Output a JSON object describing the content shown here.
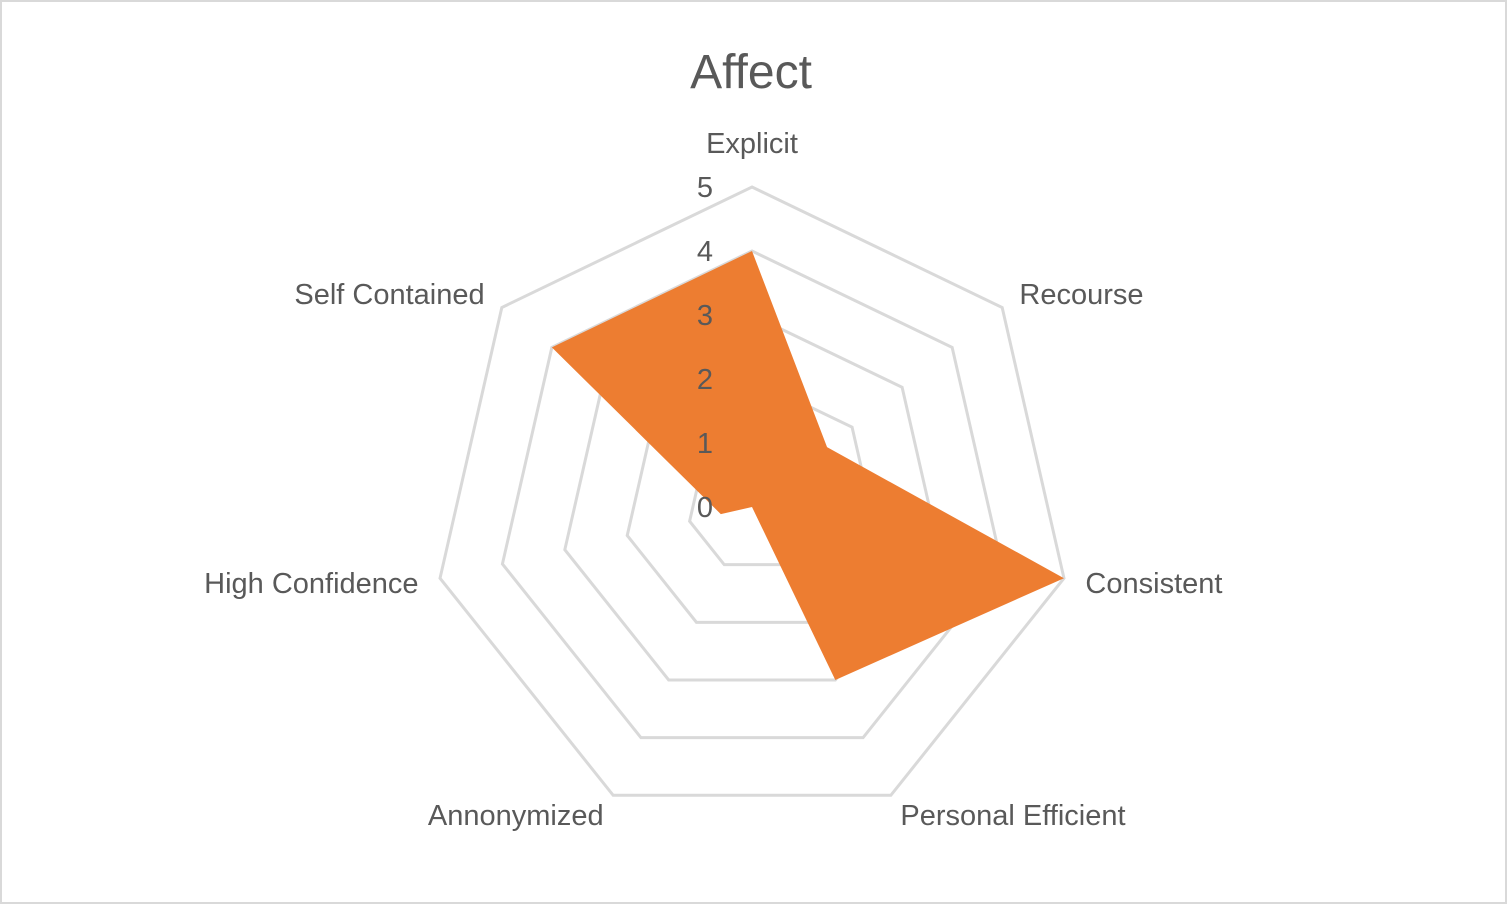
{
  "chart_data": {
    "type": "radar",
    "title": "Affect",
    "categories": [
      "Explicit",
      "Recourse",
      "Consistent",
      "Personal Efficient",
      "Annonymized",
      "High Confidence",
      "Self Contained"
    ],
    "series": [
      {
        "values": [
          4,
          1.5,
          5,
          3,
          0,
          0.5,
          4
        ]
      }
    ],
    "rlim": [
      0,
      5
    ],
    "ticks": [
      "0",
      "1",
      "2",
      "3",
      "4",
      "5"
    ],
    "grid": true,
    "legend": "none",
    "colors": {
      "fill": "#ed7d31",
      "grid": "#d9d9d9",
      "text": "#595959"
    }
  }
}
